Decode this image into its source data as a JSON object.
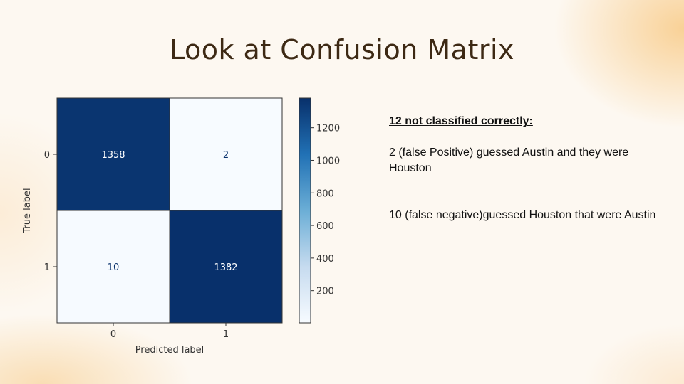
{
  "slide": {
    "title": "Look at Confusion Matrix"
  },
  "notes": {
    "heading": "12 not classified correctly:",
    "line1": "2 (false Positive) guessed Austin and they were Houston",
    "line2": "10 (false negative)guessed Houston that were Austin"
  },
  "chart_data": {
    "type": "heatmap",
    "xlabel": "Predicted label",
    "ylabel": "True label",
    "x_categories": [
      "0",
      "1"
    ],
    "y_categories": [
      "0",
      "1"
    ],
    "values": [
      [
        1358,
        2
      ],
      [
        10,
        1382
      ]
    ],
    "colormap": "Blues",
    "colorbar": {
      "range": [
        2,
        1382
      ],
      "ticks": [
        200,
        400,
        600,
        800,
        1000,
        1200
      ]
    },
    "colors": {
      "low": "#f7fbff",
      "high": "#08306b",
      "cell_text_dark": "#08306b",
      "cell_text_light": "#ffffff"
    }
  }
}
